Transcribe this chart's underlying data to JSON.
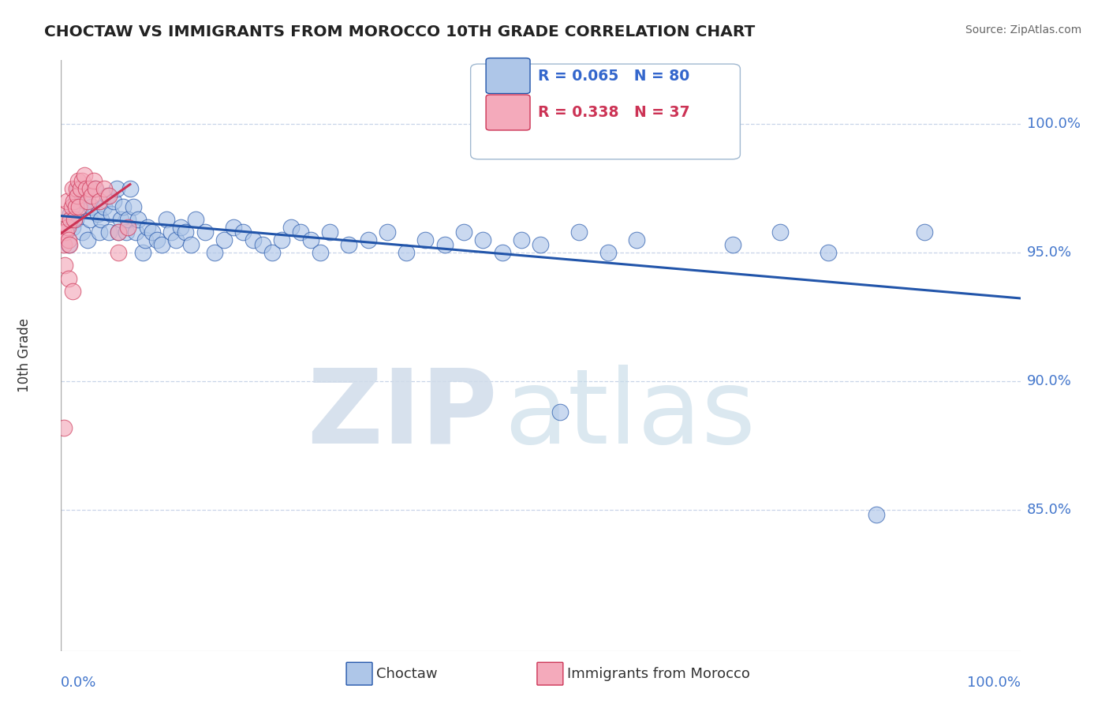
{
  "title": "CHOCTAW VS IMMIGRANTS FROM MOROCCO 10TH GRADE CORRELATION CHART",
  "source_text": "Source: ZipAtlas.com",
  "ylabel": "10th Grade",
  "watermark_zip": "ZIP",
  "watermark_atlas": "atlas",
  "legend_blue_R": "R = 0.065",
  "legend_blue_N": "N = 80",
  "legend_pink_R": "R = 0.338",
  "legend_pink_N": "N = 37",
  "legend_blue_label": "Choctaw",
  "legend_pink_label": "Immigrants from Morocco",
  "blue_color": "#aec6e8",
  "pink_color": "#f4aabb",
  "blue_line_color": "#2255aa",
  "pink_line_color": "#cc3355",
  "legend_text_blue": "#3366cc",
  "legend_text_pink": "#cc3355",
  "axis_label_color": "#4477cc",
  "grid_color": "#c8d4e8",
  "title_color": "#222222",
  "xmin": 0.0,
  "xmax": 1.0,
  "ymin": 0.795,
  "ymax": 1.025,
  "yticks": [
    0.85,
    0.9,
    0.95,
    1.0
  ],
  "ytick_labels": [
    "85.0%",
    "90.0%",
    "95.0%",
    "100.0%"
  ],
  "blue_x": [
    0.005,
    0.008,
    0.01,
    0.012,
    0.015,
    0.015,
    0.018,
    0.02,
    0.022,
    0.025,
    0.028,
    0.03,
    0.032,
    0.035,
    0.038,
    0.04,
    0.042,
    0.045,
    0.048,
    0.05,
    0.052,
    0.055,
    0.058,
    0.06,
    0.062,
    0.065,
    0.068,
    0.07,
    0.072,
    0.075,
    0.078,
    0.08,
    0.085,
    0.088,
    0.09,
    0.095,
    0.1,
    0.105,
    0.11,
    0.115,
    0.12,
    0.125,
    0.13,
    0.135,
    0.14,
    0.15,
    0.16,
    0.17,
    0.18,
    0.19,
    0.2,
    0.21,
    0.22,
    0.23,
    0.24,
    0.25,
    0.26,
    0.27,
    0.28,
    0.3,
    0.32,
    0.34,
    0.36,
    0.38,
    0.4,
    0.42,
    0.44,
    0.46,
    0.48,
    0.5,
    0.52,
    0.54,
    0.57,
    0.6,
    0.65,
    0.7,
    0.75,
    0.8,
    0.85,
    0.9
  ],
  "blue_y": [
    0.958,
    0.953,
    0.965,
    0.96,
    0.97,
    0.963,
    0.975,
    0.968,
    0.958,
    0.97,
    0.955,
    0.963,
    0.968,
    0.975,
    0.965,
    0.958,
    0.963,
    0.968,
    0.972,
    0.958,
    0.965,
    0.97,
    0.975,
    0.958,
    0.963,
    0.968,
    0.958,
    0.963,
    0.975,
    0.968,
    0.958,
    0.963,
    0.95,
    0.955,
    0.96,
    0.958,
    0.955,
    0.953,
    0.963,
    0.958,
    0.955,
    0.96,
    0.958,
    0.953,
    0.963,
    0.958,
    0.95,
    0.955,
    0.96,
    0.958,
    0.955,
    0.953,
    0.95,
    0.955,
    0.96,
    0.958,
    0.955,
    0.95,
    0.958,
    0.953,
    0.955,
    0.958,
    0.95,
    0.955,
    0.953,
    0.958,
    0.955,
    0.95,
    0.955,
    0.953,
    0.888,
    0.958,
    0.95,
    0.955,
    1.0,
    0.953,
    0.958,
    0.95,
    0.848,
    0.958
  ],
  "pink_x": [
    0.002,
    0.003,
    0.004,
    0.005,
    0.006,
    0.007,
    0.008,
    0.009,
    0.01,
    0.011,
    0.012,
    0.013,
    0.014,
    0.015,
    0.016,
    0.017,
    0.018,
    0.019,
    0.02,
    0.022,
    0.024,
    0.026,
    0.028,
    0.03,
    0.032,
    0.034,
    0.036,
    0.04,
    0.045,
    0.05,
    0.06,
    0.07,
    0.004,
    0.008,
    0.012,
    0.06,
    0.003
  ],
  "pink_y": [
    0.958,
    0.953,
    0.965,
    0.958,
    0.97,
    0.96,
    0.955,
    0.953,
    0.963,
    0.968,
    0.975,
    0.97,
    0.963,
    0.968,
    0.975,
    0.972,
    0.978,
    0.968,
    0.975,
    0.978,
    0.98,
    0.975,
    0.97,
    0.975,
    0.972,
    0.978,
    0.975,
    0.97,
    0.975,
    0.972,
    0.958,
    0.96,
    0.945,
    0.94,
    0.935,
    0.95,
    0.882
  ]
}
